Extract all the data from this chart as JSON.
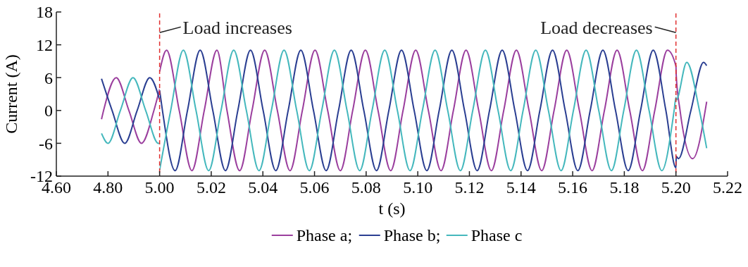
{
  "chart_data": [
    {
      "type": "line",
      "ylabel": "Current (A)",
      "xlim": [
        4.6,
        5.0
      ],
      "ylim": [
        -12,
        18
      ],
      "xticks": [
        {
          "value": 4.6,
          "label": "4.60"
        },
        {
          "value": 4.8,
          "label": "4.80"
        }
      ],
      "yticks": [
        -12,
        -6,
        0,
        6,
        12,
        18
      ],
      "grid": false,
      "marker": "none",
      "line_style": "solid",
      "series": [
        {
          "color": "#9b3f9e",
          "x": [
            4.775,
            4.783,
            4.832,
            4.881,
            4.93,
            4.978,
            5.0
          ],
          "values": [
            -1.6,
            0,
            6,
            0,
            -6,
            0,
            3.9
          ]
        },
        {
          "color": "#2b3f92",
          "x": [
            4.775,
            4.816,
            4.865,
            4.913,
            4.962,
            5.0
          ],
          "values": [
            5.8,
            0,
            -6,
            0,
            6,
            2.0
          ]
        },
        {
          "color": "#45b8bd",
          "x": [
            4.775,
            4.8,
            4.848,
            4.897,
            4.946,
            4.995,
            5.0
          ],
          "values": [
            -4.2,
            -6,
            0,
            6,
            0,
            -6,
            -6.0
          ]
        }
      ]
    },
    {
      "type": "line",
      "xlabel": "t (s)",
      "xlim": [
        5.0,
        5.22
      ],
      "ylim": [
        -12,
        18
      ],
      "tick_labels": "x",
      "xticks": [
        {
          "value": 5.0,
          "label": "5.00"
        },
        {
          "value": 5.02,
          "label": "5.02"
        },
        {
          "value": 5.04,
          "label": "5.04"
        },
        {
          "value": 5.06,
          "label": "5.06"
        },
        {
          "value": 5.08,
          "label": "5.08"
        },
        {
          "value": 5.1,
          "label": "5.10"
        },
        {
          "value": 5.12,
          "label": "5.12"
        },
        {
          "value": 5.14,
          "label": "5.14"
        },
        {
          "value": 5.16,
          "label": "5.16"
        },
        {
          "value": 5.18,
          "label": "5.18"
        },
        {
          "value": 5.2,
          "label": "5.20"
        },
        {
          "value": 5.22,
          "label": "5.22"
        }
      ],
      "grid": false,
      "legend": "bottom",
      "marker": "none",
      "line_style": "solid",
      "ref_lines": [
        {
          "axis": "x",
          "value": 5.0,
          "color": "#e03030",
          "line_style": "dashed"
        },
        {
          "axis": "x",
          "value": 5.2,
          "color": "#e03030",
          "line_style": "dashed"
        }
      ],
      "annotations": [
        {
          "text": "Load increases",
          "x": 5.0,
          "y": 15
        },
        {
          "text": "Load decreases",
          "x": 5.2,
          "y": 15
        }
      ],
      "series": [
        {
          "name": "Phase a;",
          "color": "#9b3f9e",
          "x": [
            5.0,
            5.0027,
            5.0076,
            5.0125,
            5.0173,
            5.0222,
            5.0261,
            5.031,
            5.0358,
            5.0407,
            5.0456,
            5.0505,
            5.0553,
            5.0602,
            5.0651,
            5.07,
            5.0748,
            5.0797,
            5.0846,
            5.0895,
            5.0943,
            5.0992,
            5.1041,
            5.109,
            5.1138,
            5.1187,
            5.1236,
            5.1285,
            5.1333,
            5.1382,
            5.1431,
            5.148,
            5.1528,
            5.1577,
            5.1626,
            5.1675,
            5.1723,
            5.1772,
            5.1821,
            5.187,
            5.1918,
            5.1967,
            5.2,
            5.2001,
            5.2016,
            5.2065,
            5.2119
          ],
          "values": [
            7.1,
            11,
            0,
            -11,
            0,
            11,
            0,
            -11,
            0,
            11,
            0,
            -11,
            0,
            11,
            0,
            -11,
            0,
            11,
            0,
            -11,
            0,
            11,
            0,
            -11,
            0,
            11,
            0,
            -11,
            0,
            11,
            0,
            -11,
            0,
            11,
            0,
            -11,
            0,
            11,
            0,
            -11,
            0,
            11,
            8.1,
            6.5,
            0,
            -8.8,
            1.6
          ]
        },
        {
          "name": "Phase b;",
          "color": "#2b3f92",
          "x": [
            5.0,
            5.0011,
            5.006,
            5.0108,
            5.0157,
            5.0206,
            5.0255,
            5.0303,
            5.0352,
            5.0401,
            5.045,
            5.0498,
            5.0547,
            5.0596,
            5.0645,
            5.0693,
            5.0742,
            5.0791,
            5.084,
            5.0888,
            5.0937,
            5.0986,
            5.1035,
            5.1083,
            5.1132,
            5.1181,
            5.123,
            5.1278,
            5.1327,
            5.1376,
            5.1425,
            5.1473,
            5.1522,
            5.1571,
            5.162,
            5.1668,
            5.1717,
            5.1766,
            5.1815,
            5.1863,
            5.1912,
            5.1961,
            5.2,
            5.2001,
            5.201,
            5.2058,
            5.2107,
            5.2119
          ],
          "values": [
            3.7,
            0,
            -11,
            0,
            11,
            0,
            -11,
            0,
            11,
            0,
            -11,
            0,
            11,
            0,
            -11,
            0,
            11,
            0,
            -11,
            0,
            11,
            0,
            -11,
            0,
            11,
            0,
            -11,
            0,
            11,
            0,
            -11,
            0,
            11,
            0,
            -11,
            0,
            11,
            0,
            -11,
            0,
            11,
            0,
            -10.5,
            -8.4,
            -8.8,
            0,
            8.8,
            8.2
          ]
        },
        {
          "name": "Phase c",
          "color": "#45b8bd",
          "x": [
            5.0,
            5.0043,
            5.0092,
            5.0141,
            5.019,
            5.0238,
            5.0287,
            5.0336,
            5.0385,
            5.0433,
            5.0482,
            5.0531,
            5.058,
            5.0628,
            5.0677,
            5.0726,
            5.0775,
            5.0823,
            5.0872,
            5.0921,
            5.097,
            5.1018,
            5.1067,
            5.1116,
            5.1165,
            5.1213,
            5.1262,
            5.1311,
            5.136,
            5.1408,
            5.1457,
            5.1506,
            5.1555,
            5.1603,
            5.1652,
            5.1701,
            5.175,
            5.1798,
            5.1847,
            5.1896,
            5.1945,
            5.1993,
            5.2,
            5.2001,
            5.2042,
            5.2091,
            5.2119
          ],
          "values": [
            -10.9,
            0,
            11,
            0,
            -11,
            0,
            11,
            0,
            -11,
            0,
            11,
            0,
            -11,
            0,
            11,
            0,
            -11,
            0,
            11,
            0,
            -11,
            0,
            11,
            0,
            -11,
            0,
            11,
            0,
            -11,
            0,
            11,
            0,
            -11,
            0,
            11,
            0,
            -11,
            0,
            11,
            0,
            -11,
            0,
            2.4,
            1.9,
            8.8,
            0,
            -6.9
          ]
        }
      ]
    }
  ]
}
